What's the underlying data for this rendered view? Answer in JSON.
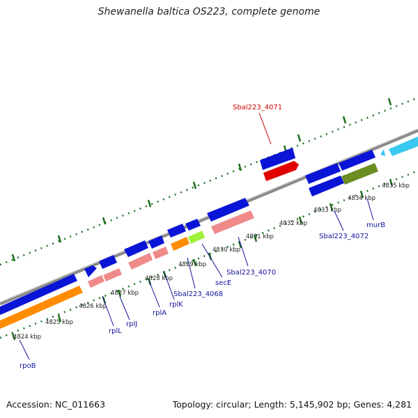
{
  "title": "Shewanella baltica OS223, complete genome",
  "footer": {
    "accession": "Accession: NC_011663",
    "summary": "Topology: circular; Length: 5,145,902 bp; Genes: 4,281"
  },
  "colors": {
    "backbone": "#8a8a8a",
    "tick": "#1f6f1f",
    "gene_cds": "#0a14d6",
    "gene_highlight": "#e00000",
    "rna_light": "#f08a8a",
    "orange": "#ff8c00",
    "lime": "#9ef23c",
    "olive": "#6b8e23",
    "cyan": "#39c8f0",
    "label_blue": "#10109a",
    "label_red": "#cc0000"
  },
  "scale_labels": [
    "4824 kbp",
    "4825 kbp",
    "4826 kbp",
    "4827 kbp",
    "4828 kbp",
    "4829 kbp",
    "4830 kbp",
    "4831 kbp",
    "4832 kbp",
    "4833 kbp",
    "4834 kbp",
    "4835 kbp"
  ],
  "gene_labels": {
    "rpoB": "rpoB",
    "rplL": "rplL",
    "rplJ": "rplJ",
    "rplA": "rplA",
    "rplK": "rplK",
    "sbal4068": "Sbal223_4068",
    "secE": "secE",
    "sbal4070": "Sbal223_4070",
    "sbal4071": "Sbal223_4071",
    "sbal4072": "Sbal223_4072",
    "murB": "murB"
  }
}
